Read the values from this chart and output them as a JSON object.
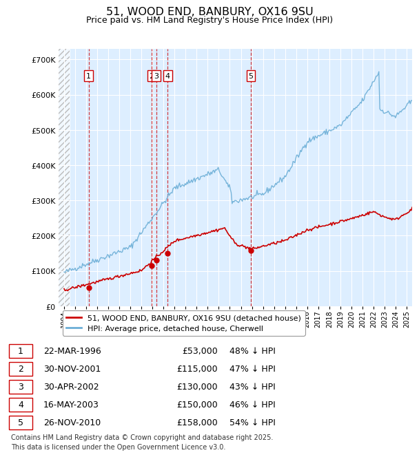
{
  "title": "51, WOOD END, BANBURY, OX16 9SU",
  "subtitle": "Price paid vs. HM Land Registry's House Price Index (HPI)",
  "hpi_color": "#6baed6",
  "price_color": "#cc0000",
  "hpi_label": "HPI: Average price, detached house, Cherwell",
  "price_label": "51, WOOD END, BANBURY, OX16 9SU (detached house)",
  "transactions": [
    {
      "num": 1,
      "date": "22-MAR-1996",
      "price": 53000,
      "year": 1996.22,
      "pct": "48% ↓ HPI"
    },
    {
      "num": 2,
      "date": "30-NOV-2001",
      "price": 115000,
      "year": 2001.92,
      "pct": "47% ↓ HPI"
    },
    {
      "num": 3,
      "date": "30-APR-2002",
      "price": 130000,
      "year": 2002.33,
      "pct": "43% ↓ HPI"
    },
    {
      "num": 4,
      "date": "16-MAY-2003",
      "price": 150000,
      "year": 2003.38,
      "pct": "46% ↓ HPI"
    },
    {
      "num": 5,
      "date": "26-NOV-2010",
      "price": 158000,
      "year": 2010.9,
      "pct": "54% ↓ HPI"
    }
  ],
  "footnote": "Contains HM Land Registry data © Crown copyright and database right 2025.\nThis data is licensed under the Open Government Licence v3.0.",
  "ylim": [
    0,
    730000
  ],
  "yticks": [
    0,
    100000,
    200000,
    300000,
    400000,
    500000,
    600000,
    700000
  ],
  "xlim_start": 1993.5,
  "xlim_end": 2025.5,
  "bg_hatch_end": 1994.5,
  "chart_bg": "#ddeeff",
  "grid_color": "#ffffff"
}
